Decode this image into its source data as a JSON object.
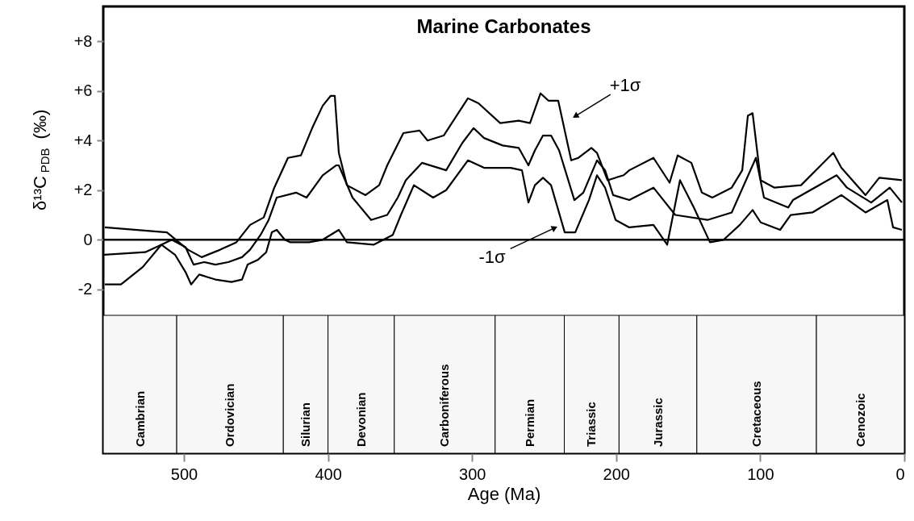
{
  "chart_data": {
    "type": "line",
    "title": "Marine Carbonates",
    "xlabel": "Age (Ma)",
    "ylabel": "δ¹³C$_{PDB}$ (‰)",
    "xlim": [
      556,
      0
    ],
    "xticks": [
      500,
      400,
      300,
      200,
      100,
      0
    ],
    "ylim": [
      -8.6,
      9.4
    ],
    "yticks": [
      {
        "value": 8,
        "label": "+8"
      },
      {
        "value": 6,
        "label": "+6"
      },
      {
        "value": 4,
        "label": "+4"
      },
      {
        "value": 2,
        "label": "+2"
      },
      0,
      {
        "value": -2,
        "label": "-2"
      }
    ],
    "series": [
      {
        "color": "#000000",
        "x": [
          555.4,
          526.9,
          515.7,
          508.4,
          498.9,
          493.3,
          486.0,
          478.2,
          469.2,
          459.7,
          454.1,
          446.8,
          441.2,
          435.6,
          422.2,
          414.9,
          403.7,
          394.2,
          392.5,
          383.0,
          370.1,
          358.9,
          351.6,
          346.0,
          334.8,
          318.0,
          306.8,
          299.0,
          291.7,
          278.8,
          267.6,
          260.9,
          256.4,
          250.8,
          245.2,
          239.6,
          229.0,
          222.8,
          213.3,
          207.7,
          202.1,
          190.9,
          174.1,
          159.0,
          136.6,
          119.8,
          103.0,
          97.4,
          80.6,
          77.3,
          47.0,
          39.8,
          23.0,
          10.1,
          1.7
        ],
        "values": [
          -0.6,
          -0.5,
          -0.2,
          0.0,
          -0.3,
          -1.0,
          -0.9,
          -1.0,
          -0.9,
          -0.7,
          -0.4,
          0.2,
          0.8,
          1.7,
          1.9,
          1.7,
          2.6,
          3.0,
          3.0,
          1.7,
          0.8,
          1.0,
          1.7,
          2.4,
          3.1,
          2.8,
          3.9,
          4.5,
          4.1,
          3.8,
          3.7,
          3.0,
          3.6,
          4.2,
          4.2,
          3.6,
          1.6,
          1.9,
          3.2,
          2.8,
          1.8,
          1.6,
          2.1,
          1.0,
          0.8,
          1.1,
          3.3,
          1.7,
          1.3,
          1.6,
          2.6,
          2.1,
          1.5,
          2.1,
          1.5
        ]
      },
      {
        "color": "#000000",
        "x": [
          554.9,
          511.8,
          497.2,
          487.7,
          474.8,
          463.6,
          454.1,
          444.6,
          437.3,
          427.8,
          418.8,
          411.0,
          403.7,
          398.1,
          395.3,
          392.5,
          386.9,
          374.0,
          364.5,
          358.9,
          347.7,
          336.5,
          330.9,
          319.7,
          302.9,
          295.6,
          280.5,
          267.6,
          259.8,
          252.5,
          246.9,
          240.2,
          231.2,
          226.2,
          217.2,
          213.3,
          206.0,
          194.8,
          190.9,
          174.1,
          162.9,
          157.3,
          147.8,
          140.5,
          133.3,
          119.8,
          112.5,
          108.6,
          105.3,
          99.7,
          90.1,
          71.7,
          49.3,
          43.7,
          26.9,
          17.4,
          1.7
        ],
        "values": [
          0.5,
          0.3,
          -0.4,
          -0.7,
          -0.4,
          -0.1,
          0.6,
          0.9,
          2.1,
          3.3,
          3.4,
          4.5,
          5.4,
          5.8,
          5.8,
          3.5,
          2.2,
          1.8,
          2.2,
          3.0,
          4.3,
          4.4,
          4.0,
          4.2,
          5.7,
          5.5,
          4.7,
          4.8,
          4.7,
          5.9,
          5.6,
          5.6,
          3.2,
          3.3,
          3.7,
          3.5,
          2.4,
          2.6,
          2.8,
          3.3,
          2.3,
          3.4,
          3.1,
          1.9,
          1.7,
          2.1,
          2.8,
          5.0,
          5.1,
          2.4,
          2.1,
          2.2,
          3.5,
          2.9,
          1.8,
          2.5,
          2.4
        ]
      },
      {
        "color": "#000000",
        "x": [
          554.9,
          543.7,
          528.6,
          515.7,
          506.2,
          498.9,
          495.0,
          489.4,
          478.2,
          467.0,
          459.7,
          455.8,
          448.5,
          442.9,
          439.0,
          435.6,
          430.0,
          426.1,
          413.2,
          403.7,
          392.5,
          386.9,
          368.4,
          355.0,
          349.4,
          340.4,
          327.0,
          318.0,
          302.9,
          291.7,
          273.2,
          265.4,
          260.9,
          256.4,
          250.8,
          245.2,
          235.7,
          228.4,
          218.9,
          213.3,
          207.7,
          200.4,
          190.9,
          174.1,
          164.6,
          155.7,
          146.1,
          134.9,
          125.4,
          114.2,
          105.3,
          99.7,
          86.2,
          78.9,
          63.8,
          43.7,
          26.9,
          11.8,
          7.8,
          1.7
        ],
        "values": [
          -1.8,
          -1.8,
          -1.1,
          -0.2,
          -0.6,
          -1.3,
          -1.8,
          -1.4,
          -1.6,
          -1.7,
          -1.6,
          -1.0,
          -0.8,
          -0.5,
          0.3,
          0.4,
          0.0,
          -0.1,
          -0.1,
          0.0,
          0.4,
          -0.1,
          -0.2,
          0.2,
          1.0,
          2.2,
          1.7,
          2.0,
          3.2,
          2.9,
          2.9,
          2.8,
          1.5,
          2.2,
          2.5,
          2.2,
          0.3,
          0.3,
          1.6,
          2.6,
          2.1,
          0.8,
          0.5,
          0.6,
          -0.2,
          2.4,
          1.3,
          -0.1,
          0.0,
          0.6,
          1.2,
          0.7,
          0.4,
          1.0,
          1.1,
          1.8,
          1.1,
          1.6,
          0.5,
          0.4
        ]
      }
    ],
    "ref_lines": [
      {
        "axis": "y",
        "value": 0,
        "color": "#000000"
      }
    ],
    "bands": [
      {
        "axis": "x",
        "from": 556,
        "to": 505,
        "label": "Cambrian",
        "color": "#f7f7f7"
      },
      {
        "axis": "x",
        "from": 505,
        "to": 431,
        "label": "Ordovician",
        "color": "#f7f7f7"
      },
      {
        "axis": "x",
        "from": 431,
        "to": 400,
        "label": "Silurian",
        "color": "#f7f7f7"
      },
      {
        "axis": "x",
        "from": 400,
        "to": 354,
        "label": "Devonian",
        "color": "#f7f7f7"
      },
      {
        "axis": "x",
        "from": 354,
        "to": 284,
        "label": "Carboniferous",
        "color": "#f7f7f7"
      },
      {
        "axis": "x",
        "from": 284,
        "to": 236,
        "label": "Permian",
        "color": "#f7f7f7"
      },
      {
        "axis": "x",
        "from": 236,
        "to": 198,
        "label": "Triassic",
        "color": "#f7f7f7"
      },
      {
        "axis": "x",
        "from": 198,
        "to": 144,
        "label": "Jurassic",
        "color": "#f7f7f7"
      },
      {
        "axis": "x",
        "from": 144,
        "to": 61,
        "label": "Cretaceous",
        "color": "#f7f7f7"
      },
      {
        "axis": "x",
        "from": 61,
        "to": 0,
        "label": "Cenozoic",
        "color": "#f7f7f7"
      }
    ],
    "annotations": [
      "+1σ",
      "-1σ"
    ]
  }
}
